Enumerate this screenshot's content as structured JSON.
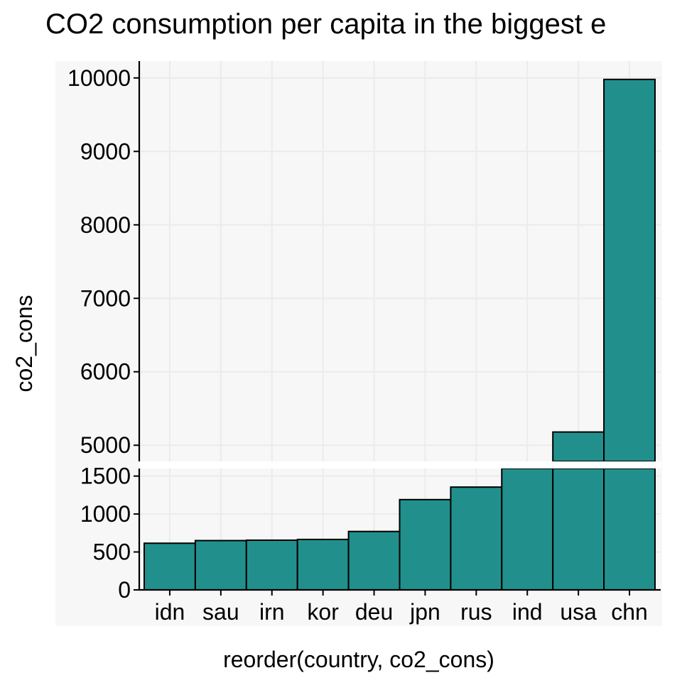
{
  "chart_data": {
    "type": "bar",
    "title": "CO2 consumption per capita in the biggest e",
    "xlabel": "reorder(country, co2_cons)",
    "ylabel": "co2_cons",
    "categories": [
      "idn",
      "sau",
      "irn",
      "kor",
      "deu",
      "jpn",
      "rus",
      "ind",
      "usa",
      "chn"
    ],
    "values": [
      615,
      650,
      655,
      665,
      770,
      1190,
      1355,
      1660,
      5180,
      9980
    ],
    "axis_break": true,
    "lower_panel": {
      "ylim": [
        0,
        1600
      ],
      "ticks": [
        0,
        500,
        1000,
        1500
      ]
    },
    "upper_panel": {
      "ylim": [
        4780,
        10230
      ],
      "ticks": [
        5000,
        6000,
        7000,
        8000,
        9000,
        10000
      ]
    },
    "grid": true,
    "bar_color": "#21908C",
    "panel_background": "#F7F7F7"
  }
}
